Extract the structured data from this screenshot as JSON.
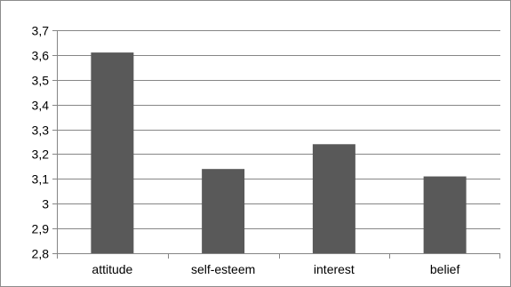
{
  "chart_data": {
    "type": "bar",
    "categories": [
      "attitude",
      "self-esteem",
      "interest",
      "belief"
    ],
    "values": [
      3.61,
      3.14,
      3.24,
      3.11
    ],
    "ylim": [
      2.8,
      3.7
    ],
    "yticks": [
      "2,8",
      "2,9",
      "3",
      "3,1",
      "3,2",
      "3,3",
      "3,4",
      "3,5",
      "3,6",
      "3,7"
    ],
    "grid": true,
    "bar_color": "#595959",
    "grid_color": "#868686",
    "legend": "none"
  }
}
